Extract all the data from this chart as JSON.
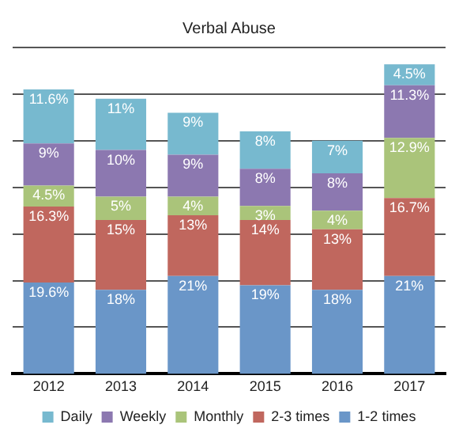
{
  "chart_data": {
    "type": "bar",
    "title": "Verbal Abuse",
    "stacked": true,
    "categories": [
      "2012",
      "2013",
      "2014",
      "2015",
      "2016",
      "2017"
    ],
    "series": [
      {
        "name": "1-2 times",
        "color": "#6a96c8",
        "values": [
          19.6,
          18,
          21,
          19,
          18,
          21
        ],
        "value_labels": [
          "19.6%",
          "18%",
          "21%",
          "19%",
          "18%",
          "21%"
        ]
      },
      {
        "name": "2-3 times",
        "color": "#c0675e",
        "values": [
          16.3,
          15,
          13,
          14,
          13,
          16.7
        ],
        "value_labels": [
          "16.3%",
          "15%",
          "13%",
          "14%",
          "13%",
          "16.7%"
        ]
      },
      {
        "name": "Monthly",
        "color": "#aac47a",
        "values": [
          4.5,
          5,
          4,
          3,
          4,
          12.9
        ],
        "value_labels": [
          "4.5%",
          "5%",
          "4%",
          "3%",
          "4%",
          "12.9%"
        ]
      },
      {
        "name": "Weekly",
        "color": "#8c78b0",
        "values": [
          9,
          10,
          9,
          8,
          8,
          11.3
        ],
        "value_labels": [
          "9%",
          "10%",
          "9%",
          "8%",
          "8%",
          "11.3%"
        ]
      },
      {
        "name": "Daily",
        "color": "#77b9cf",
        "values": [
          11.6,
          11,
          9,
          8,
          7,
          4.5
        ],
        "value_labels": [
          "11.6%",
          "11%",
          "9%",
          "8%",
          "7%",
          "4.5%"
        ]
      }
    ],
    "ylim": [
      0,
      70
    ],
    "yticks": [
      {
        "value": 0,
        "label": null
      },
      {
        "value": 10,
        "label": null
      },
      {
        "value": 20,
        "label": null
      },
      {
        "value": 30,
        "label": null
      },
      {
        "value": 40,
        "label": null
      },
      {
        "value": 50,
        "label": null
      },
      {
        "value": 60,
        "label": null
      },
      {
        "value": 70,
        "label": null
      }
    ],
    "tick_labels": "x",
    "grid": "y",
    "legend": "bottom"
  }
}
